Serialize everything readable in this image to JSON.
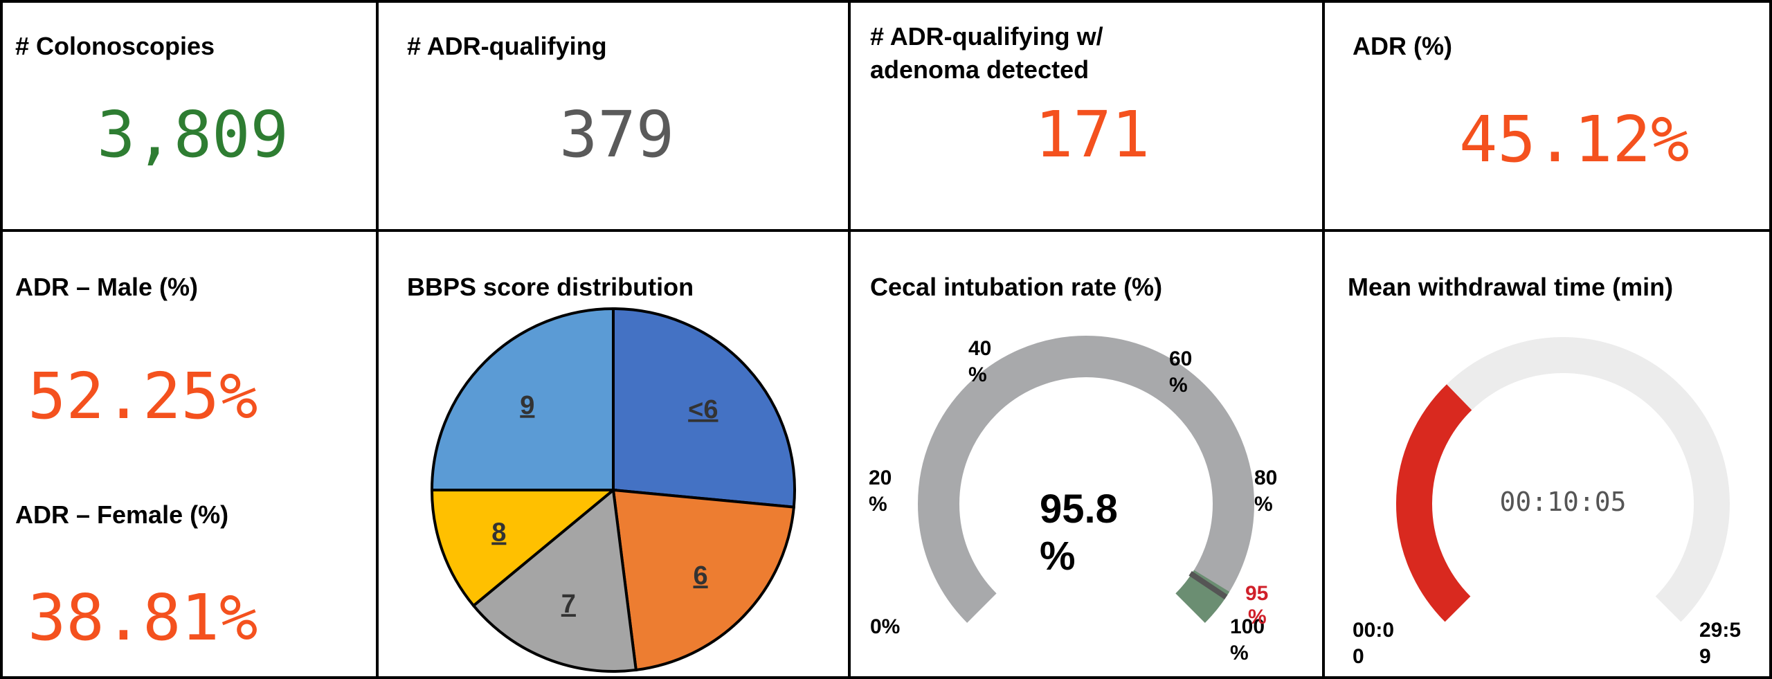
{
  "tiles": {
    "colonoscopies": {
      "title": "# Colonoscopies",
      "value": "3,809",
      "color": "#2e7d32"
    },
    "adr_qualifying": {
      "title": "# ADR-qualifying",
      "value": "379",
      "color": "#5a5a5a"
    },
    "adr_adenoma": {
      "title_line1": "# ADR-qualifying w/",
      "title_line2": "adenoma detected",
      "value": "171",
      "color": "#f4511e"
    },
    "adr_pct": {
      "title": "ADR (%)",
      "value": "45.12%",
      "color": "#f4511e"
    },
    "adr_male": {
      "title": "ADR – Male (%)",
      "value": "52.25%",
      "color": "#f4511e"
    },
    "adr_female": {
      "title": "ADR – Female (%)",
      "value": "38.81%",
      "color": "#f4511e"
    }
  },
  "chart_data": [
    {
      "type": "pie",
      "title": "BBPS score distribution",
      "categories": [
        "<6",
        "6",
        "7",
        "8",
        "9"
      ],
      "values": [
        26.5,
        21.5,
        16,
        11,
        25
      ],
      "colors": [
        "#4472c4",
        "#ed7d31",
        "#a5a5a5",
        "#ffc000",
        "#5b9bd5"
      ]
    },
    {
      "type": "gauge",
      "title": "Cecal intubation rate (%)",
      "value": 95.8,
      "value_label_line1": "95.8",
      "value_label_line2": "%",
      "min": 0,
      "max": 100,
      "target": 95,
      "target_label_line1": "95",
      "target_label_line2": "%",
      "ticks": [
        {
          "value": 0,
          "line1": "0%",
          "line2": ""
        },
        {
          "value": 20,
          "line1": "20",
          "line2": "%"
        },
        {
          "value": 40,
          "line1": "40",
          "line2": "%"
        },
        {
          "value": 60,
          "line1": "60",
          "line2": "%"
        },
        {
          "value": 80,
          "line1": "80",
          "line2": "%"
        },
        {
          "value": 100,
          "line1": "100",
          "line2": "%"
        }
      ],
      "track_color": "#a8a9ab",
      "target_band_color": "#6b8e72",
      "target_label_color": "#d0202a"
    },
    {
      "type": "gauge",
      "title": "Mean withdrawal time (min)",
      "value_seconds": 605,
      "value_label": "00:10:05",
      "min_label_line1": "00:0",
      "min_label_line2": "0",
      "max_label_line1": "29:5",
      "max_label_line2": "9",
      "min_seconds": 0,
      "max_seconds": 1799,
      "fill_color": "#d9291f",
      "track_color": "#ececec"
    }
  ]
}
